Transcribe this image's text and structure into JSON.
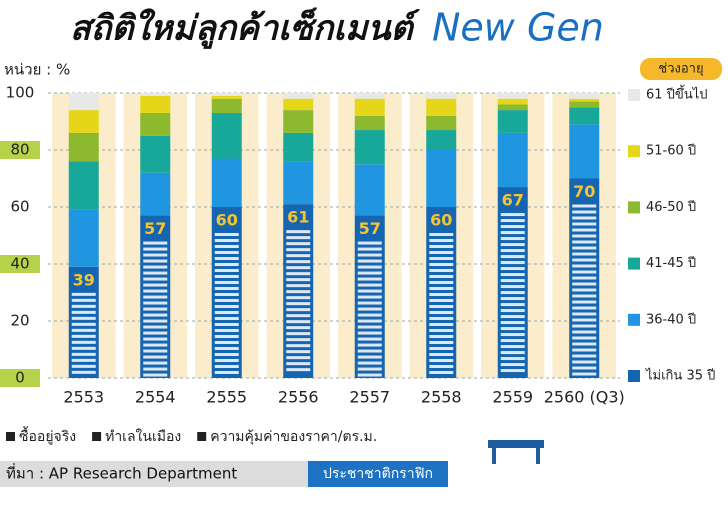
{
  "chart_data": {
    "type": "stacked_bar",
    "title": [
      "สถิติใหม่ลูกค้าเซ็กเมนต์",
      "New Gen"
    ],
    "y_label": "หน่วย : %",
    "legend_title": "ช่วงอายุ",
    "categories": [
      "2553",
      "2554",
      "2555",
      "2556",
      "2557",
      "2558",
      "2559",
      "2560 (Q3)"
    ],
    "series": [
      {
        "name": "ไม่เกิน 35 ปี",
        "color": "#1565b0",
        "values": [
          39,
          57,
          60,
          61,
          57,
          60,
          67,
          70
        ]
      },
      {
        "name": "36-40 ปี",
        "color": "#2196e0",
        "values": [
          20,
          15,
          17,
          15,
          18,
          20,
          19,
          19
        ]
      },
      {
        "name": "41-45 ปี",
        "color": "#17a89a",
        "values": [
          17,
          13,
          16,
          10,
          12,
          7,
          8,
          6
        ]
      },
      {
        "name": "46-50 ปี",
        "color": "#8db92e",
        "values": [
          10,
          8,
          5,
          8,
          5,
          5,
          2,
          2
        ]
      },
      {
        "name": "51-60 ปี",
        "color": "#e6d619",
        "values": [
          8,
          6,
          1,
          4,
          6,
          6,
          2,
          1
        ]
      },
      {
        "name": "61 ปีขึ้นไป",
        "color": "#e8e8e8",
        "values": [
          6,
          1,
          1,
          2,
          2,
          2,
          2,
          2
        ]
      }
    ],
    "ylim": [
      0,
      100
    ],
    "yticks": [
      0,
      20,
      40,
      60,
      80,
      100
    ],
    "grid": true,
    "annotations": [
      "ซื้ออยู่จริง",
      "ทำเลในเมือง",
      "ความคุ้มค่าของราคา/ตร.ม."
    ],
    "source": "ที่มา : AP Research Department",
    "credit": "ประชาชาติกราฟิก"
  }
}
